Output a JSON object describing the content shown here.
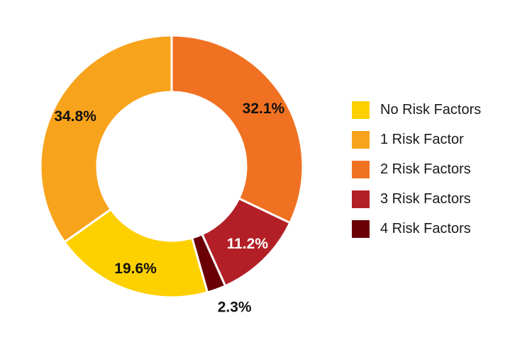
{
  "chart_data": {
    "type": "pie",
    "variant": "donut",
    "title": "",
    "start_angle_deg": 0,
    "direction": "clockwise",
    "slices": [
      {
        "label": "2 Risk Factors",
        "value": 32.1,
        "display": "32.1%",
        "color": "#F07122",
        "text_color": "#111111"
      },
      {
        "label": "3 Risk Factors",
        "value": 11.2,
        "display": "11.2%",
        "color": "#B31F26",
        "text_color": "#ffffff"
      },
      {
        "label": "4 Risk Factors",
        "value": 2.3,
        "display": "2.3%",
        "color": "#6A0005",
        "text_color": "#111111",
        "label_outside": true
      },
      {
        "label": "No Risk Factors",
        "value": 19.6,
        "display": "19.6%",
        "color": "#FDD000",
        "text_color": "#111111"
      },
      {
        "label": "1 Risk Factor",
        "value": 34.8,
        "display": "34.8%",
        "color": "#F8A31C",
        "text_color": "#111111"
      }
    ],
    "legend": {
      "position": "right",
      "entries": [
        {
          "label": "No Risk Factors",
          "color": "#FDD000"
        },
        {
          "label": "1 Risk Factor",
          "color": "#F8A31C"
        },
        {
          "label": "2 Risk Factors",
          "color": "#F07122"
        },
        {
          "label": "3 Risk Factors",
          "color": "#B31F26"
        },
        {
          "label": "4 Risk Factors",
          "color": "#6A0005"
        }
      ]
    }
  }
}
